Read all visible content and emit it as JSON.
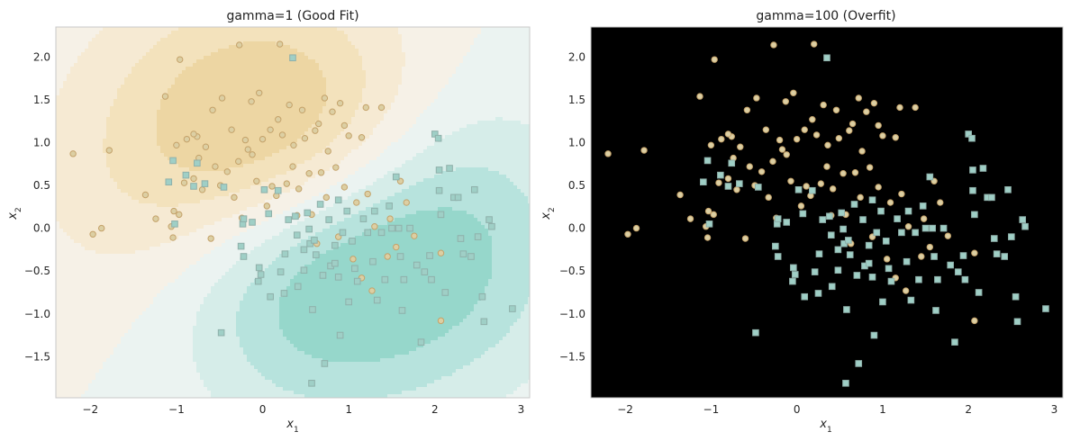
{
  "chart_data": [
    {
      "type": "scatter",
      "subtype": "svm-decision-boundary",
      "title": "gamma=1 (Good Fit)",
      "xlabel": "x1",
      "ylabel": "x2",
      "xlim": [
        -2.4,
        3.1
      ],
      "ylim": [
        -1.98,
        2.35
      ],
      "xticks": [
        -2,
        -1,
        0,
        1,
        2,
        3
      ],
      "yticks": [
        -1.5,
        -1.0,
        -0.5,
        0.0,
        0.5,
        1.0,
        1.5,
        2.0
      ],
      "grid": false,
      "fit": "smooth"
    },
    {
      "type": "scatter",
      "subtype": "svm-decision-boundary",
      "title": "gamma=100 (Overfit)",
      "xlabel": "x1",
      "ylabel": "x2",
      "xlim": [
        -2.4,
        3.1
      ],
      "ylim": [
        -1.98,
        2.35
      ],
      "xticks": [
        -2,
        -1,
        0,
        1,
        2,
        3
      ],
      "yticks": [
        -1.5,
        -1.0,
        -0.5,
        0.0,
        0.5,
        1.0,
        1.5,
        2.0
      ],
      "grid": false,
      "fit": "overfit"
    }
  ],
  "points": {
    "class_a": [
      [
        -2.2,
        0.87
      ],
      [
        -1.97,
        -0.07
      ],
      [
        -1.87,
        0.0
      ],
      [
        -1.78,
        0.91
      ],
      [
        -1.36,
        0.39
      ],
      [
        -1.24,
        0.11
      ],
      [
        -1.13,
        1.54
      ],
      [
        -1.06,
        0.02
      ],
      [
        -1.04,
        -0.11
      ],
      [
        -1.0,
        0.97
      ],
      [
        -0.97,
        0.16
      ],
      [
        -0.96,
        1.97
      ],
      [
        -0.91,
        0.53
      ],
      [
        -0.88,
        1.04
      ],
      [
        -0.8,
        0.58
      ],
      [
        -0.76,
        1.07
      ],
      [
        -0.74,
        0.82
      ],
      [
        -0.7,
        0.45
      ],
      [
        -0.66,
        0.95
      ],
      [
        -0.6,
        -0.12
      ],
      [
        -0.58,
        1.38
      ],
      [
        -0.49,
        0.5
      ],
      [
        -0.47,
        1.52
      ],
      [
        -0.41,
        0.66
      ],
      [
        -0.36,
        1.15
      ],
      [
        -0.33,
        0.36
      ],
      [
        -0.27,
        2.14
      ],
      [
        -0.24,
        0.12
      ],
      [
        -0.2,
        1.03
      ],
      [
        -0.17,
        0.92
      ],
      [
        -0.13,
        1.48
      ],
      [
        -0.07,
        0.55
      ],
      [
        -0.04,
        1.58
      ],
      [
        0.0,
        1.04
      ],
      [
        0.05,
        0.26
      ],
      [
        0.09,
        1.15
      ],
      [
        0.11,
        0.49
      ],
      [
        0.16,
        0.38
      ],
      [
        0.2,
        2.15
      ],
      [
        0.23,
        1.09
      ],
      [
        0.28,
        0.52
      ],
      [
        0.31,
        1.44
      ],
      [
        0.36,
        0.97
      ],
      [
        0.4,
        0.15
      ],
      [
        0.46,
        1.38
      ],
      [
        0.49,
        1.05
      ],
      [
        0.54,
        0.64
      ],
      [
        0.57,
        0.16
      ],
      [
        0.61,
        1.14
      ],
      [
        0.63,
        -0.18
      ],
      [
        0.68,
        0.65
      ],
      [
        0.72,
        1.52
      ],
      [
        0.76,
        0.9
      ],
      [
        0.81,
        1.36
      ],
      [
        0.85,
        0.71
      ],
      [
        0.88,
        -0.1
      ],
      [
        0.9,
        1.46
      ],
      [
        0.95,
        0.48
      ],
      [
        1.0,
        1.08
      ],
      [
        1.05,
        -0.36
      ],
      [
        1.09,
        0.3
      ],
      [
        1.15,
        -0.58
      ],
      [
        1.2,
        1.41
      ],
      [
        1.22,
        0.4
      ],
      [
        1.27,
        -0.73
      ],
      [
        1.3,
        0.02
      ],
      [
        1.38,
        1.41
      ],
      [
        1.45,
        -0.33
      ],
      [
        1.48,
        0.11
      ],
      [
        1.55,
        -0.22
      ],
      [
        1.6,
        0.55
      ],
      [
        1.67,
        0.3
      ],
      [
        1.76,
        -0.09
      ],
      [
        2.07,
        -0.29
      ],
      [
        2.07,
        -1.08
      ],
      [
        -1.03,
        0.2
      ],
      [
        -0.8,
        1.1
      ],
      [
        0.35,
        0.72
      ],
      [
        -0.12,
        0.86
      ],
      [
        0.65,
        1.22
      ],
      [
        0.18,
        1.27
      ],
      [
        -0.55,
        0.72
      ],
      [
        0.95,
        1.2
      ],
      [
        0.42,
        0.46
      ],
      [
        1.15,
        1.06
      ],
      [
        -0.28,
        0.78
      ],
      [
        0.74,
        0.36
      ]
    ],
    "class_b": [
      [
        -1.04,
        0.79
      ],
      [
        -1.09,
        0.54
      ],
      [
        -1.02,
        0.05
      ],
      [
        -0.8,
        0.49
      ],
      [
        -0.76,
        0.76
      ],
      [
        -0.67,
        0.52
      ],
      [
        -0.48,
        -1.22
      ],
      [
        -0.45,
        0.48
      ],
      [
        -0.25,
        -0.21
      ],
      [
        -0.23,
        0.05
      ],
      [
        -0.22,
        0.11
      ],
      [
        -0.22,
        -0.33
      ],
      [
        -0.12,
        0.07
      ],
      [
        -0.05,
        -0.62
      ],
      [
        -0.04,
        -0.46
      ],
      [
        -0.02,
        -0.54
      ],
      [
        0.02,
        0.45
      ],
      [
        0.07,
        0.17
      ],
      [
        0.09,
        -0.8
      ],
      [
        0.18,
        0.44
      ],
      [
        0.21,
        -0.51
      ],
      [
        0.26,
        -0.3
      ],
      [
        0.3,
        0.1
      ],
      [
        0.35,
        1.99
      ],
      [
        0.38,
        0.14
      ],
      [
        0.4,
        -0.08
      ],
      [
        0.41,
        -0.68
      ],
      [
        0.48,
        -0.49
      ],
      [
        0.52,
        0.18
      ],
      [
        0.54,
        -0.01
      ],
      [
        0.55,
        -0.18
      ],
      [
        0.57,
        -1.81
      ],
      [
        0.58,
        -0.95
      ],
      [
        0.6,
        -0.14
      ],
      [
        0.62,
        -0.31
      ],
      [
        0.67,
        0.28
      ],
      [
        0.7,
        -0.55
      ],
      [
        0.72,
        -1.58
      ],
      [
        0.77,
        0.1
      ],
      [
        0.79,
        -0.44
      ],
      [
        0.84,
        -0.41
      ],
      [
        0.84,
        -0.2
      ],
      [
        0.88,
        -0.57
      ],
      [
        0.9,
        -1.25
      ],
      [
        0.93,
        -0.05
      ],
      [
        0.98,
        0.2
      ],
      [
        1.0,
        -0.86
      ],
      [
        1.04,
        -0.15
      ],
      [
        1.07,
        -0.47
      ],
      [
        1.1,
        -0.62
      ],
      [
        1.17,
        0.11
      ],
      [
        1.22,
        -0.05
      ],
      [
        1.28,
        -0.39
      ],
      [
        1.33,
        -0.84
      ],
      [
        1.38,
        -0.05
      ],
      [
        1.42,
        -0.6
      ],
      [
        1.47,
        0.26
      ],
      [
        1.5,
        0.0
      ],
      [
        1.55,
        0.6
      ],
      [
        1.58,
        0.0
      ],
      [
        1.6,
        -0.33
      ],
      [
        1.62,
        -0.96
      ],
      [
        1.64,
        -0.6
      ],
      [
        1.71,
        0.0
      ],
      [
        1.79,
        -0.43
      ],
      [
        1.84,
        -1.33
      ],
      [
        1.88,
        -0.51
      ],
      [
        1.94,
        -0.32
      ],
      [
        1.96,
        -0.6
      ],
      [
        2.0,
        1.1
      ],
      [
        2.04,
        1.05
      ],
      [
        2.05,
        0.68
      ],
      [
        2.05,
        0.44
      ],
      [
        2.07,
        0.16
      ],
      [
        2.12,
        -0.75
      ],
      [
        2.17,
        0.7
      ],
      [
        2.22,
        0.36
      ],
      [
        2.27,
        0.36
      ],
      [
        2.3,
        -0.12
      ],
      [
        2.33,
        -0.3
      ],
      [
        2.42,
        -0.33
      ],
      [
        2.46,
        0.45
      ],
      [
        2.5,
        -0.1
      ],
      [
        2.55,
        -0.8
      ],
      [
        2.57,
        -1.09
      ],
      [
        2.63,
        0.1
      ],
      [
        2.66,
        0.02
      ],
      [
        2.9,
        -0.94
      ],
      [
        -0.89,
        0.62
      ],
      [
        0.25,
        -0.76
      ],
      [
        1.3,
        0.2
      ],
      [
        0.48,
        -0.25
      ],
      [
        0.88,
        0.33
      ]
    ]
  },
  "colors": {
    "class_a_fill": "#dccfa3",
    "class_a_edge": "#c4a26a",
    "class_b_fill": "#9fcfc6",
    "class_b_edge": "#8fb0aa",
    "good_neg": [
      "#96d7cb",
      "#b7e3dd",
      "#d6ede9",
      "#ebf3f1"
    ],
    "good_pos": [
      "#f6f1e7",
      "#f6ead3",
      "#f3e2bc",
      "#edd6a3"
    ],
    "over_bg_a": "#f6efe2",
    "over_bg_b": "#eef2f2",
    "over_halo_a": "#efdcb8",
    "over_halo_b": "#c2e4dd",
    "spine": "#c8c8c8"
  }
}
